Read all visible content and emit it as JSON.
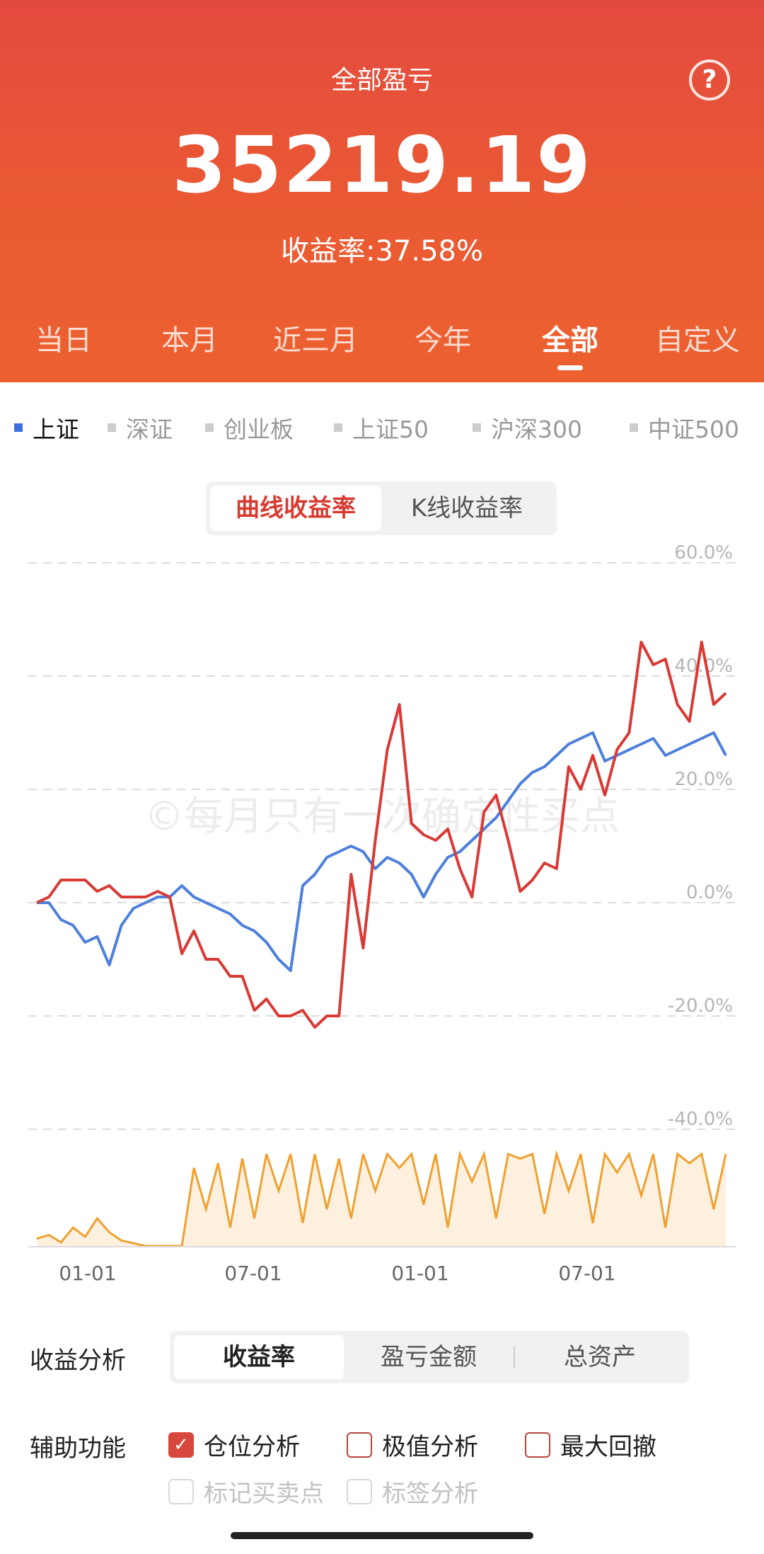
{
  "header": {
    "title": "全部盈亏",
    "amount": "35219.19",
    "rate_text": "收益率:37.58%",
    "help_icon": "?"
  },
  "range_tabs": [
    {
      "label": "当日",
      "active": false
    },
    {
      "label": "本月",
      "active": false
    },
    {
      "label": "近三月",
      "active": false
    },
    {
      "label": "今年",
      "active": false
    },
    {
      "label": "全部",
      "active": true
    },
    {
      "label": "自定义",
      "active": false
    }
  ],
  "index_tabs": [
    {
      "label": "上证",
      "active": true
    },
    {
      "label": "深证",
      "active": false
    },
    {
      "label": "创业板",
      "active": false
    },
    {
      "label": "上证50",
      "active": false
    },
    {
      "label": "沪深300",
      "active": false
    },
    {
      "label": "中证500",
      "active": false
    }
  ],
  "chart_mode": {
    "options": [
      "曲线收益率",
      "K线收益率"
    ],
    "selected": "曲线收益率"
  },
  "watermark": "©每月只有一次确定性买点",
  "chart_data": {
    "type": "line",
    "y_ticks": [
      "60.0%",
      "40.0%",
      "20.0%",
      "0.0%",
      "-20.0%",
      "-40.0%"
    ],
    "ylim": [
      -40,
      60
    ],
    "x_ticks": [
      "01-01",
      "07-01",
      "01-01",
      "07-01"
    ],
    "grid": true,
    "colors": {
      "portfolio": "#d83a35",
      "index": "#4d7fdc",
      "position": "#f0a030",
      "position_fill": "#fdf0de",
      "grid": "#dcdcdc"
    },
    "series": [
      {
        "values": [
          0,
          1,
          4,
          4,
          4,
          2,
          3,
          1,
          1,
          1,
          2,
          1,
          -9,
          -5,
          -10,
          -10,
          -13,
          -13,
          -19,
          -17,
          -20,
          -20,
          -19,
          -22,
          -20,
          -20,
          5,
          -8,
          11,
          27,
          35,
          14,
          12,
          11,
          13,
          6,
          1,
          16,
          19,
          11,
          2,
          4,
          7,
          6,
          24,
          20,
          26,
          19,
          27,
          30,
          46,
          42,
          43,
          35,
          32,
          46,
          35,
          37
        ]
      },
      {
        "values": [
          0,
          0,
          -3,
          -4,
          -7,
          -6,
          -11,
          -4,
          -1,
          0,
          1,
          1,
          3,
          1,
          0,
          -1,
          -2,
          -4,
          -5,
          -7,
          -10,
          -12,
          3,
          5,
          8,
          9,
          10,
          9,
          6,
          8,
          7,
          5,
          1,
          5,
          8,
          9,
          11,
          13,
          15,
          18,
          21,
          23,
          24,
          26,
          28,
          29,
          30,
          25,
          26,
          27,
          28,
          29,
          26,
          27,
          28,
          29,
          30,
          26
        ]
      }
    ],
    "position_values": [
      8,
      12,
      4,
      20,
      10,
      30,
      15,
      6,
      3,
      0,
      0,
      0,
      0,
      85,
      40,
      90,
      20,
      95,
      30,
      100,
      60,
      100,
      25,
      100,
      40,
      95,
      30,
      100,
      60,
      100,
      85,
      100,
      45,
      100,
      20,
      100,
      70,
      100,
      30,
      100,
      95,
      100,
      35,
      100,
      60,
      100,
      25,
      100,
      80,
      100,
      55,
      100,
      20,
      100,
      90,
      100,
      40,
      100
    ]
  },
  "analysis": {
    "label": "收益分析",
    "options": [
      "收益率",
      "盈亏金额",
      "总资产"
    ],
    "selected": "收益率"
  },
  "aux": {
    "label": "辅助功能",
    "options": [
      {
        "label": "仓位分析",
        "checked": true,
        "enabled": true
      },
      {
        "label": "极值分析",
        "checked": false,
        "enabled": true
      },
      {
        "label": "最大回撤",
        "checked": false,
        "enabled": true
      },
      {
        "label": "标记买卖点",
        "checked": false,
        "enabled": false
      },
      {
        "label": "标签分析",
        "checked": false,
        "enabled": false
      }
    ]
  }
}
